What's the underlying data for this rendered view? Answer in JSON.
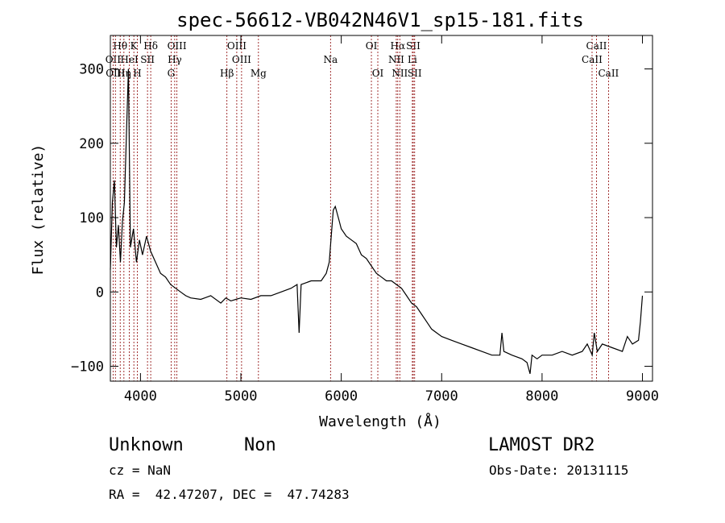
{
  "header": {
    "title": "spec-56612-VB042N46V1_sp15-181.fits"
  },
  "footer": {
    "class_text": "Unknown",
    "subclass_text": "Non",
    "cz_text": "cz = NaN",
    "coords_text": "RA =  42.47207, DEC =  47.74283",
    "survey_text": "LAMOST DR2",
    "obsdate_text": "Obs-Date: 20131115"
  },
  "chart_data": {
    "type": "line",
    "title": "spec-56612-VB042N46V1_sp15-181.fits",
    "xlabel": "Wavelength (Å)",
    "ylabel": "Flux (relative)",
    "xlim": [
      3700,
      9100
    ],
    "ylim": [
      -120,
      345
    ],
    "xticks": [
      4000,
      5000,
      6000,
      7000,
      8000,
      9000
    ],
    "yticks": [
      -100,
      0,
      100,
      200,
      300
    ],
    "grid": false,
    "line_color": "#000000",
    "marker_color": "#8b0000",
    "series": [
      {
        "x": [
          3700,
          3720,
          3740,
          3760,
          3780,
          3800,
          3820,
          3840,
          3860,
          3880,
          3900,
          3930,
          3960,
          3990,
          4020,
          4060,
          4100,
          4150,
          4200,
          4250,
          4300,
          4350,
          4400,
          4450,
          4500,
          4600,
          4700,
          4800,
          4850,
          4900,
          4950,
          5000,
          5100,
          5200,
          5300,
          5400,
          5500,
          5560,
          5580,
          5600,
          5700,
          5800,
          5850,
          5880,
          5900,
          5920,
          5940,
          5960,
          5980,
          6000,
          6050,
          6100,
          6150,
          6200,
          6250,
          6300,
          6350,
          6400,
          6450,
          6500,
          6550,
          6600,
          6650,
          6700,
          6750,
          6800,
          6850,
          6900,
          6950,
          7000,
          7100,
          7200,
          7300,
          7400,
          7500,
          7580,
          7600,
          7620,
          7700,
          7800,
          7850,
          7880,
          7900,
          7950,
          8000,
          8100,
          8200,
          8300,
          8400,
          8450,
          8500,
          8520,
          8550,
          8600,
          8700,
          8800,
          8850,
          8900,
          8960,
          8980,
          9000
        ],
        "y": [
          30,
          120,
          150,
          60,
          90,
          40,
          95,
          120,
          210,
          300,
          60,
          85,
          40,
          70,
          50,
          75,
          55,
          40,
          25,
          20,
          10,
          5,
          0,
          -5,
          -8,
          -10,
          -5,
          -15,
          -8,
          -12,
          -10,
          -8,
          -10,
          -5,
          -5,
          0,
          5,
          10,
          -55,
          10,
          15,
          15,
          25,
          40,
          75,
          110,
          115,
          105,
          95,
          85,
          75,
          70,
          65,
          50,
          45,
          35,
          25,
          20,
          15,
          15,
          10,
          5,
          -5,
          -15,
          -20,
          -30,
          -40,
          -50,
          -55,
          -60,
          -65,
          -70,
          -75,
          -80,
          -85,
          -85,
          -55,
          -80,
          -85,
          -90,
          -95,
          -110,
          -85,
          -90,
          -85,
          -85,
          -80,
          -85,
          -80,
          -70,
          -85,
          -55,
          -80,
          -70,
          -75,
          -80,
          -60,
          -70,
          -65,
          -40,
          -5
        ]
      }
    ],
    "lines": [
      {
        "name": "Hθ",
        "wave": 3798,
        "row": 1
      },
      {
        "name": "K",
        "wave": 3934,
        "row": 1
      },
      {
        "name": "Hδ",
        "wave": 4102,
        "row": 1
      },
      {
        "name": "OIII",
        "wave": 4363,
        "row": 1
      },
      {
        "name": "OIII",
        "wave": 4959,
        "row": 1
      },
      {
        "name": "OI",
        "wave": 6300,
        "row": 1
      },
      {
        "name": "Hα",
        "wave": 6563,
        "row": 1
      },
      {
        "name": "SII",
        "wave": 6717,
        "row": 1
      },
      {
        "name": "CaII",
        "wave": 8542,
        "row": 1
      },
      {
        "name": "OII",
        "wave": 3727,
        "row": 2
      },
      {
        "name": "HeI",
        "wave": 3889,
        "row": 2
      },
      {
        "name": "SII",
        "wave": 4070,
        "row": 2
      },
      {
        "name": "Hγ",
        "wave": 4341,
        "row": 2
      },
      {
        "name": "OIII",
        "wave": 5007,
        "row": 2
      },
      {
        "name": "Na",
        "wave": 5893,
        "row": 2
      },
      {
        "name": "NII",
        "wave": 6548,
        "row": 2
      },
      {
        "name": "Li",
        "wave": 6708,
        "row": 2
      },
      {
        "name": "CaII",
        "wave": 8498,
        "row": 2
      },
      {
        "name": "OIII",
        "wave": 3750,
        "row": 3
      },
      {
        "name": "Hη",
        "wave": 3835,
        "row": 3
      },
      {
        "name": "H",
        "wave": 3969,
        "row": 3
      },
      {
        "name": "G",
        "wave": 4305,
        "row": 3
      },
      {
        "name": "Hβ",
        "wave": 4861,
        "row": 3
      },
      {
        "name": "Mg",
        "wave": 5175,
        "row": 3
      },
      {
        "name": "OI",
        "wave": 6364,
        "row": 3
      },
      {
        "name": "NII",
        "wave": 6583,
        "row": 3
      },
      {
        "name": "SII",
        "wave": 6731,
        "row": 3
      },
      {
        "name": "CaII",
        "wave": 8662,
        "row": 3
      }
    ]
  }
}
